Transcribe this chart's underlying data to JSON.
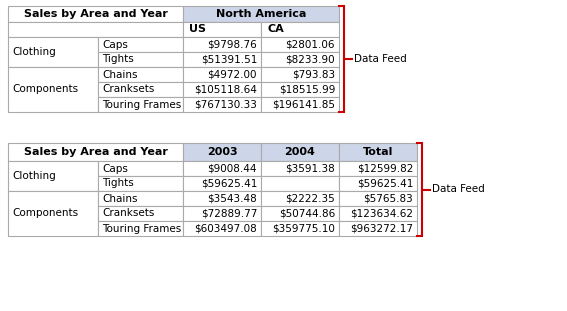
{
  "table1": {
    "title": "Sales by Area and Year",
    "header_group": "North America",
    "col_headers": [
      "US",
      "CA"
    ],
    "row_groups": [
      {
        "group": "Clothing",
        "rows": [
          [
            "Caps",
            "$9798.76",
            "$2801.06"
          ],
          [
            "Tights",
            "$51391.51",
            "$8233.90"
          ]
        ]
      },
      {
        "group": "Components",
        "rows": [
          [
            "Chains",
            "$4972.00",
            "$793.83"
          ],
          [
            "Cranksets",
            "$105118.64",
            "$18515.99"
          ],
          [
            "Touring Frames",
            "$767130.33",
            "$196141.85"
          ]
        ]
      }
    ],
    "header_bg": "#cdd5e8",
    "border_color": "#aaaaaa"
  },
  "table2": {
    "title": "Sales by Area and Year",
    "col_headers": [
      "2003",
      "2004",
      "Total"
    ],
    "row_groups": [
      {
        "group": "Clothing",
        "rows": [
          [
            "Caps",
            "$9008.44",
            "$3591.38",
            "$12599.82"
          ],
          [
            "Tights",
            "$59625.41",
            "",
            "$59625.41"
          ]
        ]
      },
      {
        "group": "Components",
        "rows": [
          [
            "Chains",
            "$3543.48",
            "$2222.35",
            "$5765.83"
          ],
          [
            "Cranksets",
            "$72889.77",
            "$50744.86",
            "$123634.62"
          ],
          [
            "Touring Frames",
            "$603497.08",
            "$359775.10",
            "$963272.17"
          ]
        ]
      }
    ],
    "header_bg": "#cdd5e8",
    "border_color": "#aaaaaa"
  },
  "datafeed_label": "Data Feed",
  "bracket_color": "#cc0000",
  "font_size": 7.5
}
